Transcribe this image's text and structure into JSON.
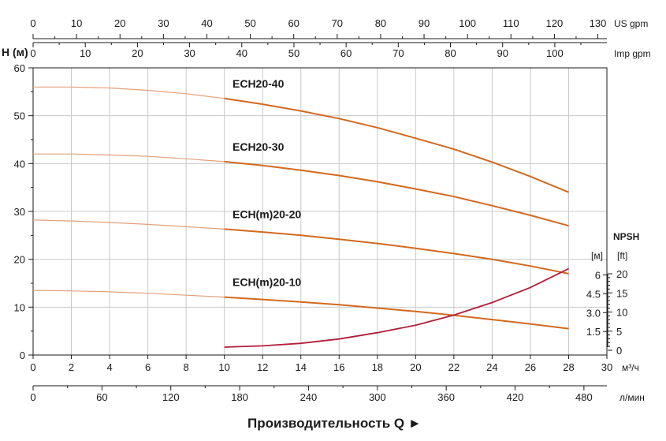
{
  "chart_data": {
    "type": "line",
    "ylabel": "H (м)",
    "xlabel": "Производительность Q ►",
    "x_unit": "м³/ч",
    "xlim": [
      0,
      30
    ],
    "ylim": [
      0,
      60
    ],
    "x_ticks": [
      0,
      2,
      4,
      6,
      8,
      10,
      12,
      14,
      16,
      18,
      20,
      22,
      24,
      26,
      28,
      30
    ],
    "y_ticks": [
      0,
      10,
      20,
      30,
      40,
      50,
      60
    ],
    "grid": true,
    "series": [
      {
        "name": "ECH20-40",
        "x": [
          0,
          2,
          4,
          6,
          8,
          10,
          12,
          14,
          16,
          18,
          20,
          22,
          24,
          26,
          28
        ],
        "y": [
          56,
          56,
          55.8,
          55.3,
          54.6,
          53.6,
          52.4,
          51,
          49.4,
          47.5,
          45.3,
          43,
          40.3,
          37.3,
          34
        ]
      },
      {
        "name": "ECH20-30",
        "x": [
          0,
          2,
          4,
          6,
          8,
          10,
          12,
          14,
          16,
          18,
          20,
          22,
          24,
          26,
          28
        ],
        "y": [
          42,
          42,
          41.8,
          41.5,
          41,
          40.4,
          39.6,
          38.6,
          37.5,
          36.2,
          34.7,
          33.1,
          31.2,
          29.2,
          27
        ]
      },
      {
        "name": "ECH(m)20-20",
        "x": [
          0,
          2,
          4,
          6,
          8,
          10,
          12,
          14,
          16,
          18,
          20,
          22,
          24,
          26,
          28
        ],
        "y": [
          28.2,
          28,
          27.7,
          27.3,
          26.8,
          26.3,
          25.7,
          25,
          24.2,
          23.3,
          22.3,
          21.2,
          20,
          18.6,
          17
        ]
      },
      {
        "name": "ECH(m)20-10",
        "x": [
          0,
          2,
          4,
          6,
          8,
          10,
          12,
          14,
          16,
          18,
          20,
          22,
          24,
          26,
          28
        ],
        "y": [
          13.5,
          13.4,
          13.2,
          12.9,
          12.5,
          12.1,
          11.6,
          11.1,
          10.5,
          9.8,
          9.1,
          8.3,
          7.4,
          6.5,
          5.5
        ]
      }
    ],
    "npsh": {
      "title": "NPSH",
      "unit_m": "[м]",
      "unit_ft": "[ft]",
      "m_ticks": [
        1.5,
        3.0,
        4.5,
        6
      ],
      "m_tick_labels": [
        "1.5",
        "3.0",
        "4.5",
        "6"
      ],
      "ft_ticks": [
        0,
        5,
        10,
        15,
        20
      ],
      "x": [
        10,
        12,
        14,
        16,
        18,
        20,
        22,
        24,
        26,
        28
      ],
      "npsh_m": [
        0.25,
        0.35,
        0.55,
        0.9,
        1.4,
        2.0,
        2.8,
        3.8,
        5.0,
        6.5
      ],
      "color": "#b01e3a"
    },
    "secondary_axes": {
      "us_gpm": {
        "label": "US gpm",
        "ticks": [
          0,
          10,
          20,
          30,
          40,
          50,
          60,
          70,
          80,
          90,
          100,
          110,
          120,
          130
        ]
      },
      "imp_gpm": {
        "label": "Imp gpm",
        "ticks": [
          0,
          10,
          20,
          30,
          40,
          50,
          60,
          70,
          80,
          90,
          100
        ]
      },
      "l_min": {
        "label": "л/мин",
        "ticks": [
          0,
          60,
          120,
          180,
          240,
          300,
          360,
          420,
          480
        ]
      }
    },
    "colors": {
      "curve": "#d2691e",
      "curve_thin": "#e3a07a",
      "grid": "#c8c8c8",
      "axis": "#1a1a1a"
    }
  }
}
